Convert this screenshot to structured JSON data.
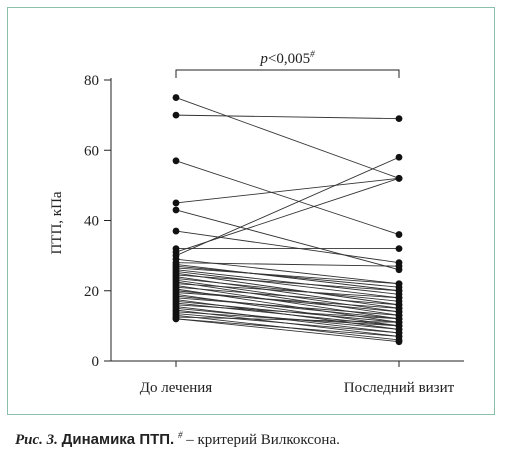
{
  "chart_data": {
    "type": "line",
    "ylabel": "ПТП, кПа",
    "xlabel": "",
    "ylim": [
      0,
      80
    ],
    "yticks": [
      0,
      20,
      40,
      60,
      80
    ],
    "categories": [
      "До лечения",
      "Последний визит"
    ],
    "significance": {
      "prefix": "p",
      "text": "<0,005",
      "mark": "#"
    },
    "colors": {
      "lines": "#333333",
      "points": "#111111",
      "axis": "#222222"
    },
    "pairs": [
      [
        75,
        52
      ],
      [
        70,
        69
      ],
      [
        57,
        36
      ],
      [
        45,
        52
      ],
      [
        43,
        26
      ],
      [
        37,
        28
      ],
      [
        32,
        32
      ],
      [
        31,
        52
      ],
      [
        30,
        58
      ],
      [
        29,
        22
      ],
      [
        28,
        27
      ],
      [
        27.5,
        20
      ],
      [
        27,
        21
      ],
      [
        26.5,
        22
      ],
      [
        26,
        19
      ],
      [
        25.5,
        18
      ],
      [
        25,
        16
      ],
      [
        24.5,
        20
      ],
      [
        24,
        15
      ],
      [
        23.5,
        17
      ],
      [
        23,
        14
      ],
      [
        22.5,
        13
      ],
      [
        22,
        18
      ],
      [
        21.5,
        12
      ],
      [
        21,
        16
      ],
      [
        20.5,
        11
      ],
      [
        20,
        14
      ],
      [
        19.5,
        15
      ],
      [
        19,
        10
      ],
      [
        18.5,
        12
      ],
      [
        18,
        13
      ],
      [
        17.5,
        9
      ],
      [
        17,
        11
      ],
      [
        16.5,
        10
      ],
      [
        16,
        12
      ],
      [
        15.5,
        8
      ],
      [
        15,
        9
      ],
      [
        14.5,
        7
      ],
      [
        14,
        10
      ],
      [
        13.5,
        8
      ],
      [
        13,
        6
      ],
      [
        12.5,
        11
      ],
      [
        12,
        7
      ],
      [
        12,
        5.5
      ]
    ]
  },
  "caption": {
    "label": "Рис. 3.",
    "title": "Динамика ПТП.",
    "mark": "#",
    "text": " – критерий Вилкоксона."
  }
}
